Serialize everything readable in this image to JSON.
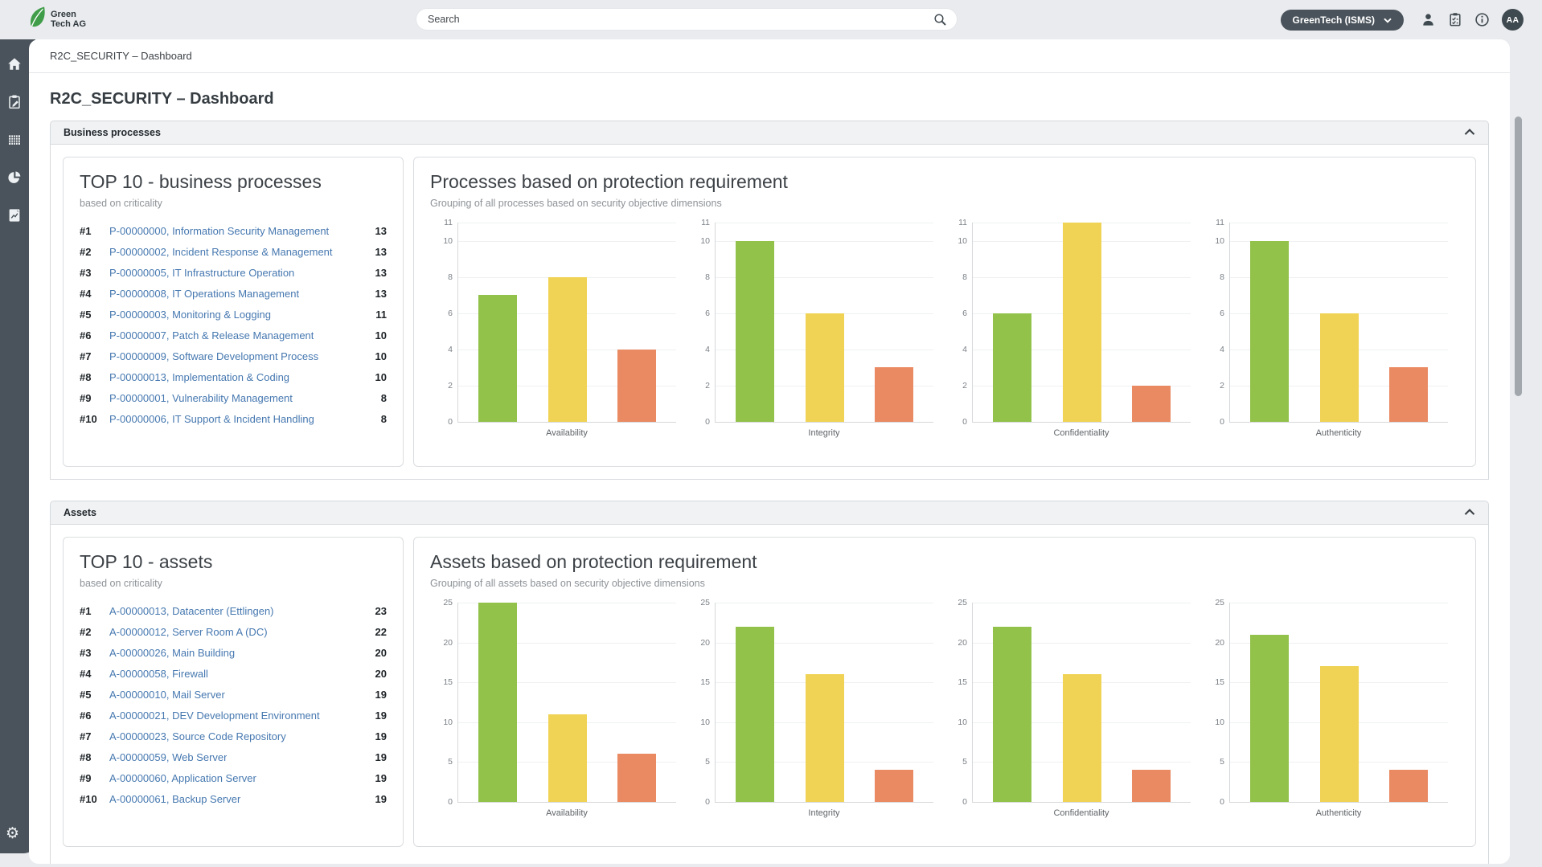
{
  "topbar": {
    "brand_line1": "Green",
    "brand_line2": "Tech AG",
    "search_placeholder": "Search",
    "org_selector_label": "GreenTech (ISMS)",
    "avatar_initials": "AA"
  },
  "icons": {
    "topbar": [
      "search-icon",
      "chevron-down-icon",
      "user-icon",
      "clipboard-check-icon",
      "info-icon"
    ],
    "sidebar": [
      "home-icon",
      "clipboard-edit-icon",
      "table-icon",
      "pie-chart-icon",
      "report-icon",
      "gear-icon"
    ]
  },
  "colors": {
    "sidebar": "#4a535b",
    "link": "#4678b0",
    "bar_green": "#92c24a",
    "bar_yellow": "#f0d355",
    "bar_orange": "#e98a63"
  },
  "breadcrumb": "R2C_SECURITY – Dashboard",
  "page_title": "R2C_SECURITY – Dashboard",
  "sections": [
    {
      "header": "Business processes",
      "top10": {
        "title": "TOP 10 - business processes",
        "subtitle": "based on criticality",
        "rows": [
          {
            "rank": "#1",
            "label": "P-00000000, Information Security Management",
            "value": "13"
          },
          {
            "rank": "#2",
            "label": "P-00000002, Incident Response & Management",
            "value": "13"
          },
          {
            "rank": "#3",
            "label": "P-00000005, IT Infrastructure Operation",
            "value": "13"
          },
          {
            "rank": "#4",
            "label": "P-00000008, IT Operations Management",
            "value": "13"
          },
          {
            "rank": "#5",
            "label": "P-00000003, Monitoring & Logging",
            "value": "11"
          },
          {
            "rank": "#6",
            "label": "P-00000007, Patch & Release Management",
            "value": "10"
          },
          {
            "rank": "#7",
            "label": "P-00000009, Software Development Process",
            "value": "10"
          },
          {
            "rank": "#8",
            "label": "P-00000013, Implementation & Coding",
            "value": "10"
          },
          {
            "rank": "#9",
            "label": "P-00000001, Vulnerability Management",
            "value": "8"
          },
          {
            "rank": "#10",
            "label": "P-00000006, IT Support & Incident Handling",
            "value": "8"
          }
        ]
      }
    },
    {
      "header": "Assets",
      "top10": {
        "title": "TOP 10 - assets",
        "subtitle": "based on criticality",
        "rows": [
          {
            "rank": "#1",
            "label": "A-00000013, Datacenter (Ettlingen)",
            "value": "23"
          },
          {
            "rank": "#2",
            "label": "A-00000012, Server Room A (DC)",
            "value": "22"
          },
          {
            "rank": "#3",
            "label": "A-00000026, Main Building",
            "value": "20"
          },
          {
            "rank": "#4",
            "label": "A-00000058, Firewall",
            "value": "20"
          },
          {
            "rank": "#5",
            "label": "A-00000010, Mail Server",
            "value": "19"
          },
          {
            "rank": "#6",
            "label": "A-00000021, DEV Development Environment",
            "value": "19"
          },
          {
            "rank": "#7",
            "label": "A-00000023, Source Code Repository",
            "value": "19"
          },
          {
            "rank": "#8",
            "label": "A-00000059, Web Server",
            "value": "19"
          },
          {
            "rank": "#9",
            "label": "A-00000060, Application Server",
            "value": "19"
          },
          {
            "rank": "#10",
            "label": "A-00000061, Backup Server",
            "value": "19"
          }
        ]
      }
    }
  ],
  "chart_data": [
    {
      "type": "bar",
      "title": "Processes based on protection requirement",
      "subtitle": "Grouping of all processes based on security objective dimensions",
      "categories": [
        "Availability",
        "Integrity",
        "Confidentiality",
        "Authenticity"
      ],
      "series": [
        {
          "name": "green",
          "color": "#92c24a",
          "values": [
            7,
            10,
            6,
            10
          ]
        },
        {
          "name": "yellow",
          "color": "#f0d355",
          "values": [
            8,
            6,
            11,
            6
          ]
        },
        {
          "name": "orange",
          "color": "#e98a63",
          "values": [
            4,
            3,
            2,
            3
          ]
        }
      ],
      "ylim": [
        0,
        11
      ],
      "yticks": [
        0,
        2,
        4,
        6,
        8,
        10,
        11
      ],
      "grid": true,
      "legend": false
    },
    {
      "type": "bar",
      "title": "Assets based on protection requirement",
      "subtitle": "Grouping of all assets based on security objective dimensions",
      "categories": [
        "Availability",
        "Integrity",
        "Confidentiality",
        "Authenticity"
      ],
      "series": [
        {
          "name": "green",
          "color": "#92c24a",
          "values": [
            25,
            22,
            22,
            21
          ]
        },
        {
          "name": "yellow",
          "color": "#f0d355",
          "values": [
            11,
            16,
            16,
            17
          ]
        },
        {
          "name": "orange",
          "color": "#e98a63",
          "values": [
            6,
            4,
            4,
            4
          ]
        }
      ],
      "ylim": [
        0,
        25
      ],
      "yticks": [
        0,
        5,
        10,
        15,
        20,
        25
      ],
      "grid": true,
      "legend": false
    }
  ]
}
